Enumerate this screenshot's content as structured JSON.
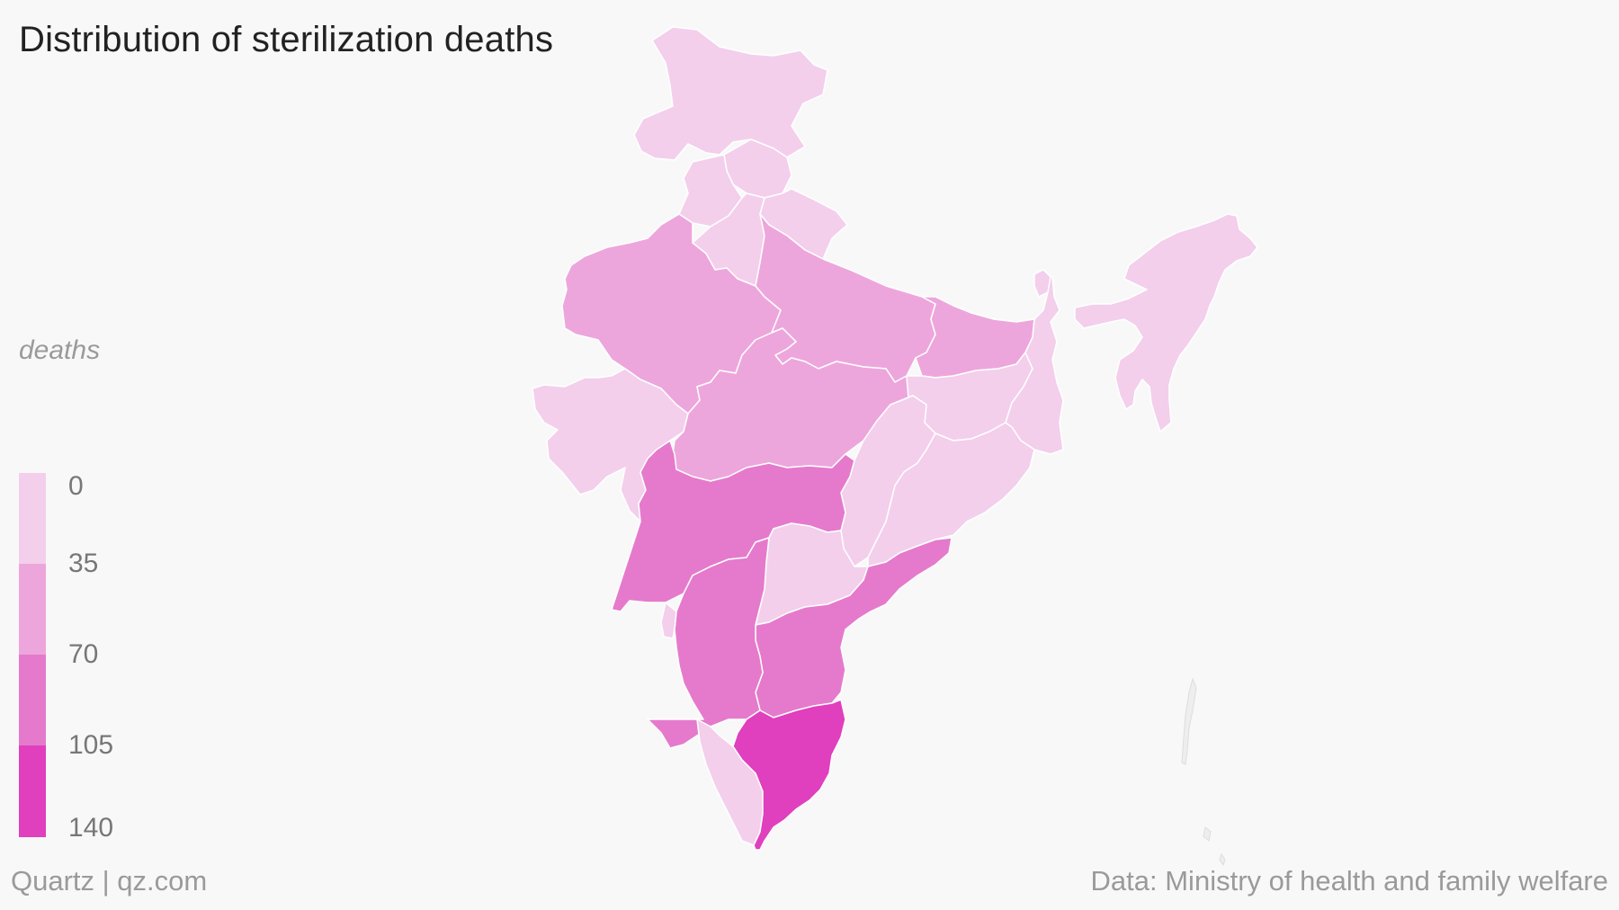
{
  "title": "Distribution of sterilization deaths",
  "legend": {
    "label": "deaths",
    "ticks": [
      "0",
      "35",
      "70",
      "105",
      "140"
    ],
    "colors": [
      "#f3cfec",
      "#eda6dc",
      "#e57acc",
      "#e03fbe"
    ]
  },
  "footer": {
    "source_left": "Quartz | qz.com",
    "source_right": "Data: Ministry of health and family welfare"
  },
  "states": [
    {
      "id": "jammu-kashmir",
      "bin": 0
    },
    {
      "id": "himachal-pradesh",
      "bin": 0
    },
    {
      "id": "punjab",
      "bin": 0
    },
    {
      "id": "uttarakhand",
      "bin": 0
    },
    {
      "id": "haryana",
      "bin": 0
    },
    {
      "id": "rajasthan",
      "bin": 1
    },
    {
      "id": "uttar-pradesh",
      "bin": 1
    },
    {
      "id": "bihar",
      "bin": 1
    },
    {
      "id": "gujarat",
      "bin": 0
    },
    {
      "id": "madhya-pradesh",
      "bin": 1
    },
    {
      "id": "jharkhand",
      "bin": 0
    },
    {
      "id": "west-bengal",
      "bin": 0
    },
    {
      "id": "chhattisgarh",
      "bin": 0
    },
    {
      "id": "odisha",
      "bin": 0
    },
    {
      "id": "maharashtra",
      "bin": 2
    },
    {
      "id": "telangana",
      "bin": 0
    },
    {
      "id": "andhra-pradesh",
      "bin": 2
    },
    {
      "id": "karnataka",
      "bin": 2
    },
    {
      "id": "goa",
      "bin": 0
    },
    {
      "id": "kerala",
      "bin": 0
    },
    {
      "id": "tamil-nadu",
      "bin": 3
    },
    {
      "id": "sikkim",
      "bin": 0
    },
    {
      "id": "northeast",
      "bin": 0
    }
  ]
}
